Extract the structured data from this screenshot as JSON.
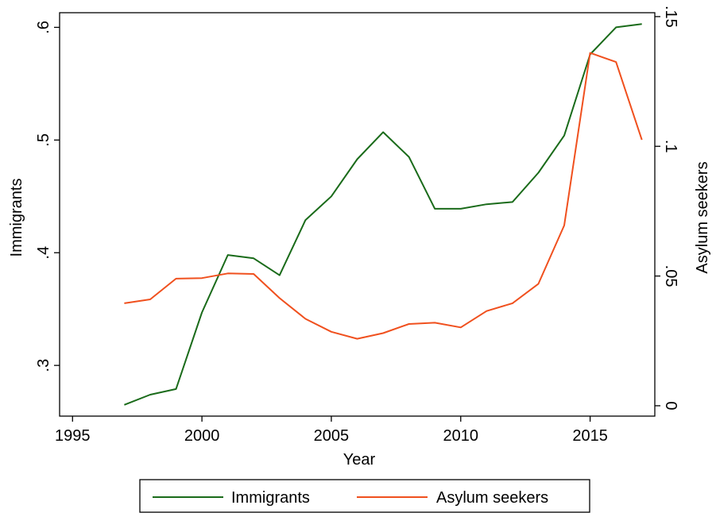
{
  "chart_data": {
    "type": "line",
    "xlabel": "Year",
    "ylabel_left": "Immigrants",
    "ylabel_right": "Asylum seekers",
    "x": [
      1997,
      1998,
      1999,
      2000,
      2001,
      2002,
      2003,
      2004,
      2005,
      2006,
      2007,
      2008,
      2009,
      2010,
      2011,
      2012,
      2013,
      2014,
      2015,
      2016,
      2017
    ],
    "xlim": [
      1994.5,
      2017.5
    ],
    "x_ticks": [
      1995,
      2000,
      2005,
      2010,
      2015
    ],
    "x_tick_labels": [
      "1995",
      "2000",
      "2005",
      "2010",
      "2015"
    ],
    "ylim_left": [
      0.255,
      0.613
    ],
    "y_ticks_left": [
      0.3,
      0.4,
      0.5,
      0.6
    ],
    "y_tick_labels_left": [
      ".3",
      ".4",
      ".5",
      ".6"
    ],
    "ylim_right": [
      -0.004,
      0.1515
    ],
    "y_ticks_right": [
      0,
      0.05,
      0.1,
      0.15
    ],
    "y_tick_labels_right": [
      "0",
      ".05",
      ".1",
      ".15"
    ],
    "grid": false,
    "legend_position": "bottom",
    "series": [
      {
        "name": "Immigrants",
        "axis": "left",
        "color": "#1a6b1a",
        "values": [
          0.265,
          0.274,
          0.279,
          0.347,
          0.398,
          0.395,
          0.38,
          0.429,
          0.45,
          0.483,
          0.507,
          0.485,
          0.439,
          0.439,
          0.443,
          0.445,
          0.471,
          0.504,
          0.576,
          0.6,
          0.603
        ]
      },
      {
        "name": "Asylum seekers",
        "axis": "right",
        "color": "#f0501e",
        "values": [
          0.0395,
          0.041,
          0.049,
          0.0492,
          0.051,
          0.0508,
          0.0415,
          0.0335,
          0.0285,
          0.0258,
          0.028,
          0.0315,
          0.032,
          0.0302,
          0.0365,
          0.0395,
          0.047,
          0.0695,
          0.136,
          0.1325,
          0.1025
        ]
      }
    ]
  }
}
